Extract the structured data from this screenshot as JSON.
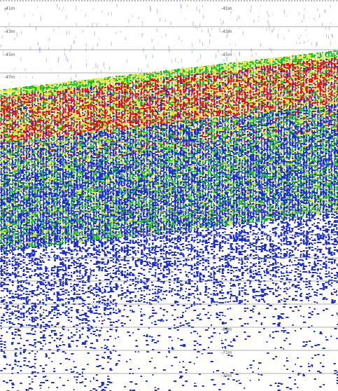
{
  "echogram": {
    "left_depth_labels": [
      "-41m",
      "-43m",
      "-45m",
      "-47m"
    ],
    "right_depth_labels": [
      "-41m",
      "-43m",
      "-45m",
      "-47m",
      "-69m",
      "-71m",
      "-73m"
    ],
    "colors": {
      "background": "#ffffff",
      "grid": "#8a8a8a",
      "weak_return": "#1c2fd6",
      "medium_return": "#19c21a",
      "strong_medium_return": "#d9e617",
      "strong_return": "#e31212"
    }
  }
}
